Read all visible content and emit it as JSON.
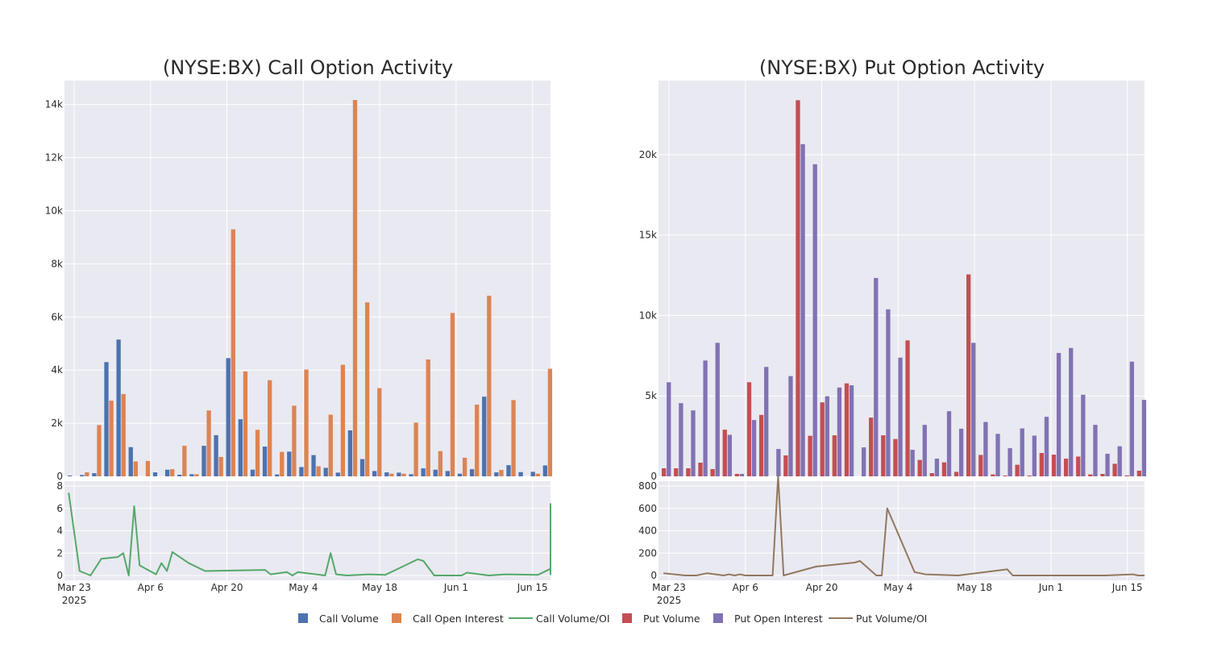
{
  "colors": {
    "plot_bg": "#e9e9f1",
    "grid": "#ffffff",
    "call_volume": "#4c72b0",
    "call_oi": "#dd8452",
    "call_ratio": "#55a868",
    "put_volume": "#c44e52",
    "put_oi": "#8172b3",
    "put_ratio": "#937860"
  },
  "legend": {
    "call_volume": "Call Volume",
    "call_oi": "Call Open Interest",
    "call_ratio": "Call Volume/OI",
    "put_volume": "Put Volume",
    "put_oi": "Put Open Interest",
    "put_ratio": "Put Volume/OI"
  },
  "chart_data": [
    {
      "type": "bar",
      "title": "(NYSE:BX) Call Option Activity",
      "x_ticks": [
        {
          "label": "Mar 23",
          "sub": "2025",
          "day": 0
        },
        {
          "label": "Apr 6",
          "sub": "",
          "day": 14
        },
        {
          "label": "Apr 20",
          "sub": "",
          "day": 28
        },
        {
          "label": "May 4",
          "sub": "",
          "day": 42
        },
        {
          "label": "May 18",
          "sub": "",
          "day": 56
        },
        {
          "label": "Jun 1",
          "sub": "",
          "day": 70
        },
        {
          "label": "Jun 15",
          "sub": "",
          "day": 84
        }
      ],
      "ylim": [
        0,
        14900
      ],
      "y_ticks": [
        {
          "v": 0,
          "label": "0"
        },
        {
          "v": 2000,
          "label": "2k"
        },
        {
          "v": 4000,
          "label": "4k"
        },
        {
          "v": 6000,
          "label": "6k"
        },
        {
          "v": 8000,
          "label": "8k"
        },
        {
          "v": 10000,
          "label": "10k"
        },
        {
          "v": 12000,
          "label": "12k"
        },
        {
          "v": 14000,
          "label": "14k"
        }
      ],
      "bars": {
        "days": [
          0,
          2,
          4,
          6,
          8,
          10,
          12,
          14,
          16,
          18,
          20,
          22,
          24,
          26,
          28,
          30,
          32,
          34,
          36,
          38,
          40,
          42,
          44,
          46,
          48,
          50,
          52,
          54,
          56,
          58,
          60,
          62,
          64,
          66,
          68,
          70,
          72,
          74,
          76,
          78,
          80,
          82,
          84,
          86
        ],
        "volume": [
          30,
          50,
          120,
          4300,
          5150,
          1100,
          0,
          150,
          250,
          60,
          80,
          1150,
          1550,
          4450,
          2150,
          250,
          1120,
          70,
          930,
          350,
          800,
          320,
          140,
          1730,
          650,
          200,
          150,
          140,
          80,
          300,
          250,
          200,
          100,
          270,
          3000,
          150,
          420,
          160,
          170,
          410,
          0,
          0,
          0,
          0
        ],
        "open_interest": [
          0,
          150,
          1930,
          2850,
          3100,
          560,
          580,
          0,
          270,
          1150,
          80,
          2480,
          730,
          9300,
          3950,
          1750,
          3620,
          920,
          2660,
          4020,
          380,
          2320,
          4200,
          14170,
          6550,
          3320,
          100,
          100,
          2020,
          4400,
          950,
          6150,
          700,
          2700,
          6800,
          240,
          2870,
          0,
          100,
          4050,
          0,
          0,
          0,
          0
        ]
      },
      "ratio": {
        "ylim": [
          0,
          8
        ],
        "y_ticks": [
          {
            "v": 0,
            "label": "0"
          },
          {
            "v": 2,
            "label": "2"
          },
          {
            "v": 4,
            "label": "4"
          },
          {
            "v": 6,
            "label": "6"
          },
          {
            "v": 8,
            "label": "8"
          }
        ],
        "points": [
          [
            -1,
            7.4
          ],
          [
            1,
            0.4
          ],
          [
            3,
            0
          ],
          [
            5,
            1.5
          ],
          [
            8,
            1.65
          ],
          [
            9,
            2
          ],
          [
            10,
            0
          ],
          [
            11,
            6.2
          ],
          [
            12,
            0.9
          ],
          [
            15,
            0.1
          ],
          [
            16,
            1.1
          ],
          [
            17,
            0.4
          ],
          [
            18,
            2.1
          ],
          [
            21,
            1.1
          ],
          [
            24,
            0.4
          ],
          [
            35,
            0.5
          ],
          [
            36,
            0.1
          ],
          [
            39,
            0.3
          ],
          [
            40,
            0
          ],
          [
            41,
            0.3
          ],
          [
            46,
            0
          ],
          [
            47,
            2
          ],
          [
            48,
            0.1
          ],
          [
            50,
            0
          ],
          [
            54,
            0.1
          ],
          [
            57,
            0.05
          ],
          [
            63,
            1.45
          ],
          [
            64,
            1.3
          ],
          [
            66,
            0
          ],
          [
            71,
            0
          ],
          [
            72,
            0.25
          ],
          [
            76,
            0
          ],
          [
            79,
            0.1
          ],
          [
            85,
            0.05
          ],
          [
            88,
            0.6
          ],
          [
            89,
            0.1
          ],
          [
            92,
            6.4
          ],
          [
            93,
            1.8
          ],
          [
            94,
            0.2
          ]
        ]
      }
    },
    {
      "type": "bar",
      "title": "(NYSE:BX) Put Option Activity",
      "x_ticks": [
        {
          "label": "Mar 23",
          "sub": "2025",
          "day": 0
        },
        {
          "label": "Apr 6",
          "sub": "",
          "day": 14
        },
        {
          "label": "Apr 20",
          "sub": "",
          "day": 28
        },
        {
          "label": "May 4",
          "sub": "",
          "day": 42
        },
        {
          "label": "May 18",
          "sub": "",
          "day": 56
        },
        {
          "label": "Jun 1",
          "sub": "",
          "day": 70
        },
        {
          "label": "Jun 15",
          "sub": "",
          "day": 84
        }
      ],
      "ylim": [
        0,
        24600
      ],
      "y_ticks": [
        {
          "v": 0,
          "label": "0"
        },
        {
          "v": 5000,
          "label": "5k"
        },
        {
          "v": 10000,
          "label": "10k"
        },
        {
          "v": 15000,
          "label": "15k"
        },
        {
          "v": 20000,
          "label": "20k"
        }
      ],
      "bars": {
        "days": [
          0,
          2,
          4,
          6,
          8,
          10,
          12,
          14,
          16,
          18,
          20,
          22,
          24,
          26,
          28,
          30,
          32,
          34,
          36,
          38,
          40,
          42,
          44,
          46,
          48,
          50,
          52,
          54,
          56,
          58,
          60,
          62,
          64,
          66,
          68,
          70,
          72,
          74,
          76,
          78,
          80,
          82,
          84,
          86
        ],
        "volume": [
          500,
          500,
          500,
          850,
          450,
          2900,
          150,
          5850,
          3820,
          0,
          1300,
          23380,
          2520,
          4600,
          2550,
          5780,
          0,
          3650,
          2550,
          2320,
          8450,
          1020,
          200,
          870,
          280,
          12550,
          1330,
          120,
          50,
          720,
          50,
          1450,
          1350,
          1100,
          1230,
          120,
          150,
          780,
          60,
          350,
          0,
          0,
          0,
          0
        ],
        "open_interest": [
          5850,
          4550,
          4100,
          7200,
          8300,
          2580,
          150,
          3500,
          6800,
          1700,
          6230,
          20650,
          19400,
          4980,
          5520,
          5660,
          1800,
          12330,
          10380,
          7380,
          1650,
          3200,
          1100,
          4050,
          2960,
          8300,
          3380,
          2640,
          1750,
          2980,
          2530,
          3700,
          7670,
          7980,
          5070,
          3200,
          1400,
          1870,
          7130,
          4750,
          0,
          0,
          0,
          0
        ]
      },
      "ratio": {
        "ylim": [
          0,
          900
        ],
        "y_ticks": [
          {
            "v": 0,
            "label": "0"
          },
          {
            "v": 200,
            "label": "200"
          },
          {
            "v": 400,
            "label": "400"
          },
          {
            "v": 600,
            "label": "600"
          },
          {
            "v": 800,
            "label": "800"
          }
        ],
        "points": [
          [
            -1,
            20
          ],
          [
            3,
            0
          ],
          [
            5,
            0
          ],
          [
            7,
            20
          ],
          [
            10,
            0
          ],
          [
            11,
            10
          ],
          [
            12,
            0
          ],
          [
            13,
            10
          ],
          [
            14,
            0
          ],
          [
            19,
            0
          ],
          [
            20,
            890
          ],
          [
            21,
            0
          ],
          [
            27,
            80
          ],
          [
            34,
            115
          ],
          [
            35,
            130
          ],
          [
            38,
            0
          ],
          [
            39,
            0
          ],
          [
            40,
            600
          ],
          [
            45,
            30
          ],
          [
            47,
            10
          ],
          [
            53,
            0
          ],
          [
            62,
            55
          ],
          [
            63,
            0
          ],
          [
            72,
            0
          ],
          [
            80,
            0
          ],
          [
            85,
            10
          ],
          [
            86,
            0
          ],
          [
            94,
            0
          ]
        ]
      }
    }
  ]
}
